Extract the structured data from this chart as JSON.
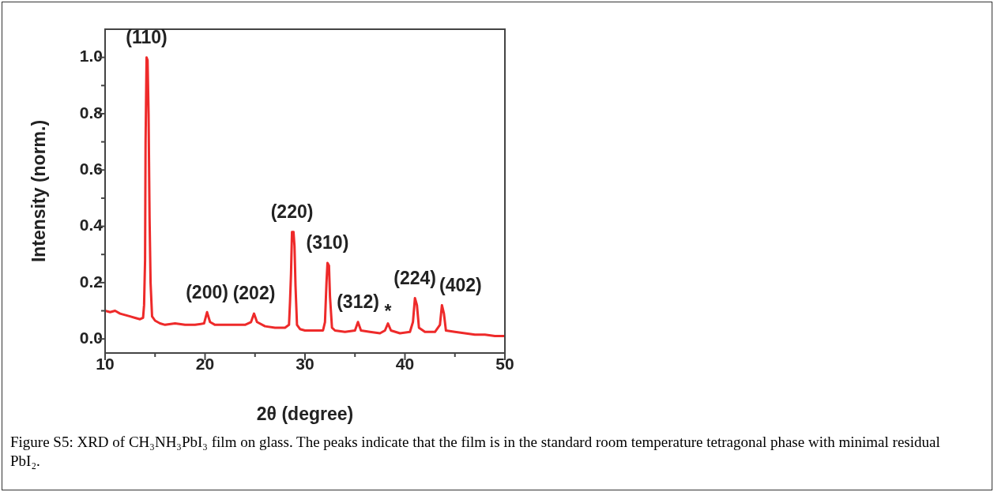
{
  "chart_data": {
    "type": "line",
    "xlabel": "2θ (degree)",
    "ylabel": "Intensity (norm.)",
    "xlim": [
      10,
      50
    ],
    "ylim": [
      -0.05,
      1.1
    ],
    "xticks": [
      10,
      {
        "value": 15,
        "label": null
      },
      20,
      {
        "value": 25,
        "label": null
      },
      30,
      {
        "value": 35,
        "label": null
      },
      40,
      {
        "value": 45,
        "label": null
      },
      50
    ],
    "yticks": [
      {
        "value": 0,
        "label": "0.0"
      },
      {
        "value": 0.1,
        "label": null
      },
      {
        "value": 0.2,
        "label": "0.2"
      },
      {
        "value": 0.3,
        "label": null
      },
      {
        "value": 0.4,
        "label": "0.4"
      },
      {
        "value": 0.5,
        "label": null
      },
      {
        "value": 0.6,
        "label": "0.6"
      },
      {
        "value": 0.7,
        "label": null
      },
      {
        "value": 0.8,
        "label": "0.8"
      },
      {
        "value": 0.9,
        "label": null
      },
      {
        "value": 1.0,
        "label": "1.0"
      }
    ],
    "grid": false,
    "legend": false,
    "marker": "none",
    "line_style": "solid",
    "series": [
      {
        "color": "#ee2a2a",
        "x": [
          10,
          10.5,
          11,
          11.5,
          12,
          12.5,
          13,
          13.5,
          13.8,
          13.9,
          14.0,
          14.05,
          14.15,
          14.25,
          14.35,
          14.45,
          14.55,
          14.7,
          15,
          15.5,
          16,
          17,
          18,
          19,
          19.9,
          20.2,
          20.5,
          21,
          22,
          23,
          24,
          24.6,
          24.9,
          25.2,
          26,
          27,
          28,
          28.4,
          28.5,
          28.6,
          28.7,
          28.85,
          28.95,
          29.05,
          29.2,
          29.5,
          30,
          31,
          31.8,
          32.0,
          32.15,
          32.25,
          32.4,
          32.5,
          32.7,
          33,
          34,
          35,
          35.3,
          35.6,
          36.5,
          37.5,
          38,
          38.3,
          38.6,
          39.5,
          40.5,
          40.8,
          41.0,
          41.2,
          41.4,
          42,
          43,
          43.5,
          43.7,
          43.9,
          44.1,
          45,
          46,
          47,
          48,
          49,
          50
        ],
        "values": [
          0.1,
          0.095,
          0.1,
          0.09,
          0.085,
          0.08,
          0.075,
          0.07,
          0.075,
          0.12,
          0.28,
          0.7,
          1.0,
          0.99,
          0.8,
          0.43,
          0.2,
          0.08,
          0.065,
          0.055,
          0.05,
          0.055,
          0.05,
          0.05,
          0.055,
          0.095,
          0.06,
          0.05,
          0.05,
          0.05,
          0.05,
          0.06,
          0.09,
          0.06,
          0.045,
          0.04,
          0.04,
          0.05,
          0.13,
          0.23,
          0.38,
          0.38,
          0.33,
          0.19,
          0.05,
          0.035,
          0.03,
          0.03,
          0.03,
          0.06,
          0.2,
          0.27,
          0.26,
          0.15,
          0.04,
          0.03,
          0.025,
          0.03,
          0.06,
          0.03,
          0.025,
          0.02,
          0.03,
          0.055,
          0.03,
          0.02,
          0.025,
          0.06,
          0.145,
          0.12,
          0.04,
          0.025,
          0.025,
          0.05,
          0.12,
          0.09,
          0.03,
          0.025,
          0.02,
          0.015,
          0.015,
          0.01,
          0.01
        ]
      }
    ],
    "annotations": [
      {
        "text": "(110)",
        "x": 14.15,
        "y": 1.0
      },
      {
        "text": "(200)",
        "x": 20.2,
        "y": 0.095
      },
      {
        "text": "(202)",
        "x": 24.9,
        "y": 0.09
      },
      {
        "text": "(220)",
        "x": 28.7,
        "y": 0.38
      },
      {
        "text": "(310)",
        "x": 32.25,
        "y": 0.27
      },
      {
        "text": "(312)",
        "x": 35.3,
        "y": 0.06
      },
      {
        "text": "*",
        "x": 38.3,
        "y": 0.055
      },
      {
        "text": "(224)",
        "x": 41.0,
        "y": 0.145
      },
      {
        "text": "(402)",
        "x": 43.7,
        "y": 0.12
      },
      "Figure S5:  XRD of CH₃NH₃PbI₃ film on glass.  The peaks indicate that the film is in the standard room temperature tetragonal phase with minimal residual PbI₂."
    ]
  }
}
